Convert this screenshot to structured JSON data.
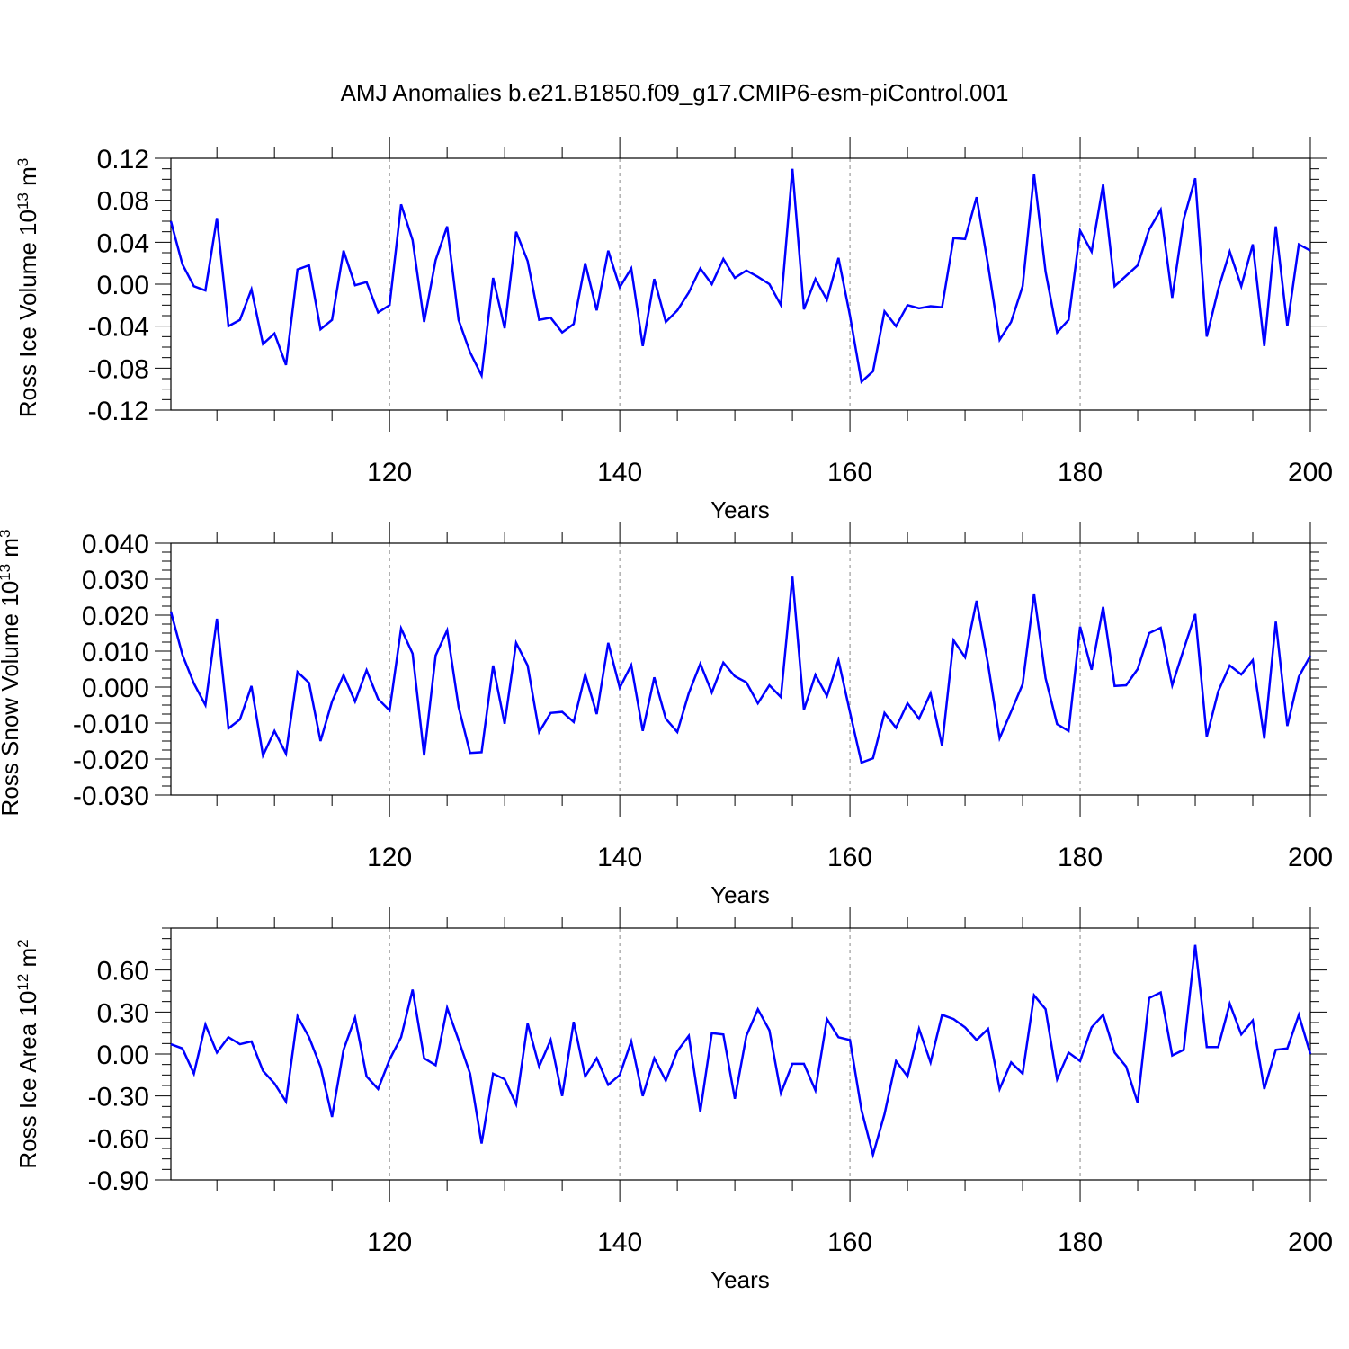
{
  "title": "AMJ Anomalies b.e21.B1850.f09_g17.CMIP6-esm-piControl.001",
  "colors": {
    "series": "#0000ff",
    "grid": "#888888",
    "axis": "#000000"
  },
  "chart_data": [
    {
      "type": "line",
      "ylabel": "Ross Ice Volume 10",
      "ylabel_exp": "13",
      "ylabel_unit": " m",
      "ylabel_unit_exp": "3",
      "xlabel": "Years",
      "xlim": [
        101,
        200
      ],
      "ylim": [
        -0.12,
        0.12
      ],
      "yticks": [
        "0.12",
        "0.08",
        "0.04",
        "0.00",
        "-0.04",
        "-0.08",
        "-0.12"
      ],
      "yticks_values": [
        0.12,
        0.08,
        0.04,
        0.0,
        -0.04,
        -0.08,
        -0.12
      ],
      "xticks": [
        "120",
        "140",
        "160",
        "180",
        "200"
      ],
      "xticks_values": [
        120,
        140,
        160,
        180,
        200
      ],
      "x_start": 101,
      "values": [
        0.06,
        0.019,
        -0.002,
        -0.006,
        0.063,
        -0.04,
        -0.034,
        -0.005,
        -0.057,
        -0.047,
        -0.077,
        0.014,
        0.018,
        -0.043,
        -0.034,
        0.032,
        -0.001,
        0.002,
        -0.027,
        -0.02,
        0.076,
        0.042,
        -0.036,
        0.023,
        0.055,
        -0.034,
        -0.065,
        -0.087,
        0.006,
        -0.042,
        0.05,
        0.022,
        -0.034,
        -0.032,
        -0.046,
        -0.038,
        0.02,
        -0.025,
        0.032,
        -0.003,
        0.015,
        -0.059,
        0.005,
        -0.036,
        -0.025,
        -0.008,
        0.015,
        0.0,
        0.024,
        0.006,
        0.013,
        0.007,
        0.0,
        -0.02,
        0.11,
        -0.024,
        0.005,
        -0.015,
        0.025,
        -0.03,
        -0.093,
        -0.083,
        -0.026,
        -0.04,
        -0.02,
        -0.023,
        -0.021,
        -0.022,
        0.044,
        0.043,
        0.083,
        0.018,
        -0.053,
        -0.036,
        -0.002,
        0.105,
        0.012,
        -0.046,
        -0.034,
        0.051,
        0.031,
        0.095,
        -0.002,
        0.008,
        0.018,
        0.052,
        0.071,
        -0.013,
        0.062,
        0.101,
        -0.05,
        -0.005,
        0.031,
        -0.002,
        0.038,
        -0.059,
        0.055,
        -0.04,
        0.038,
        0.032
      ]
    },
    {
      "type": "line",
      "ylabel": "Ross Snow Volume 10",
      "ylabel_exp": "13",
      "ylabel_unit": " m",
      "ylabel_unit_exp": "3",
      "xlabel": "Years",
      "xlim": [
        101,
        200
      ],
      "ylim": [
        -0.03,
        0.04
      ],
      "yticks": [
        "0.040",
        "0.030",
        "0.020",
        "0.010",
        "0.000",
        "-0.010",
        "-0.020",
        "-0.030"
      ],
      "yticks_values": [
        0.04,
        0.03,
        0.02,
        0.01,
        0.0,
        -0.01,
        -0.02,
        -0.03
      ],
      "xticks": [
        "120",
        "140",
        "160",
        "180",
        "200"
      ],
      "xticks_values": [
        120,
        140,
        160,
        180,
        200
      ],
      "x_start": 101,
      "values": [
        0.021,
        0.009,
        0.001,
        -0.005,
        0.019,
        -0.0115,
        -0.009,
        0.0003,
        -0.019,
        -0.0122,
        -0.0185,
        0.0042,
        0.0012,
        -0.015,
        -0.004,
        0.0033,
        -0.004,
        0.0047,
        -0.0033,
        -0.0065,
        0.0163,
        0.0093,
        -0.019,
        0.0088,
        0.0158,
        -0.0055,
        -0.0183,
        -0.0181,
        0.006,
        -0.0102,
        0.0123,
        0.006,
        -0.0125,
        -0.0072,
        -0.0069,
        -0.0097,
        0.0035,
        -0.0075,
        0.0123,
        -0.0002,
        0.0061,
        -0.0122,
        0.0027,
        -0.0088,
        -0.0125,
        -0.0017,
        0.0065,
        -0.0015,
        0.0068,
        0.003,
        0.0013,
        -0.0045,
        0.0005,
        -0.0028,
        0.0307,
        -0.0063,
        0.0034,
        -0.0025,
        0.0075,
        -0.007,
        -0.021,
        -0.0198,
        -0.0072,
        -0.0113,
        -0.0045,
        -0.0088,
        -0.0017,
        -0.0163,
        0.013,
        0.0083,
        0.024,
        0.0063,
        -0.0142,
        -0.0068,
        0.0008,
        0.026,
        0.0025,
        -0.0103,
        -0.0122,
        0.0168,
        0.0048,
        0.0223,
        0.0003,
        0.0005,
        0.005,
        0.015,
        0.0165,
        0.0005,
        0.0105,
        0.0203,
        -0.0138,
        -0.0012,
        0.006,
        0.0035,
        0.0075,
        -0.0143,
        0.0182,
        -0.0108,
        0.0029,
        0.0087
      ]
    },
    {
      "type": "line",
      "ylabel": "Ross Ice Area 10",
      "ylabel_exp": "12",
      "ylabel_unit": " m",
      "ylabel_unit_exp": "2",
      "xlabel": "Years",
      "xlim": [
        101,
        200
      ],
      "ylim": [
        -0.9,
        0.9
      ],
      "yticks": [
        "0.60",
        "0.30",
        "0.00",
        "-0.30",
        "-0.60",
        "-0.90"
      ],
      "yticks_values": [
        0.6,
        0.3,
        0.0,
        -0.3,
        -0.6,
        -0.9
      ],
      "xticks": [
        "120",
        "140",
        "160",
        "180",
        "200"
      ],
      "xticks_values": [
        120,
        140,
        160,
        180,
        200
      ],
      "x_start": 101,
      "values": [
        0.07,
        0.04,
        -0.14,
        0.21,
        0.01,
        0.12,
        0.07,
        0.09,
        -0.12,
        -0.21,
        -0.34,
        0.27,
        0.12,
        -0.09,
        -0.45,
        0.03,
        0.26,
        -0.16,
        -0.25,
        -0.04,
        0.12,
        0.46,
        -0.03,
        -0.08,
        0.33,
        0.1,
        -0.14,
        -0.64,
        -0.14,
        -0.18,
        -0.36,
        0.22,
        -0.09,
        0.1,
        -0.3,
        0.23,
        -0.16,
        -0.03,
        -0.22,
        -0.15,
        0.09,
        -0.3,
        -0.03,
        -0.19,
        0.02,
        0.13,
        -0.41,
        0.15,
        0.14,
        -0.32,
        0.13,
        0.32,
        0.17,
        -0.28,
        -0.07,
        -0.07,
        -0.26,
        0.25,
        0.12,
        0.1,
        -0.4,
        -0.72,
        -0.43,
        -0.05,
        -0.16,
        0.18,
        -0.06,
        0.28,
        0.25,
        0.19,
        0.1,
        0.18,
        -0.25,
        -0.06,
        -0.14,
        0.42,
        0.32,
        -0.18,
        0.01,
        -0.05,
        0.19,
        0.28,
        0.01,
        -0.09,
        -0.35,
        0.4,
        0.44,
        -0.01,
        0.03,
        0.78,
        0.05,
        0.05,
        0.36,
        0.14,
        0.24,
        -0.25,
        0.03,
        0.04,
        0.28,
        0.0
      ]
    }
  ]
}
